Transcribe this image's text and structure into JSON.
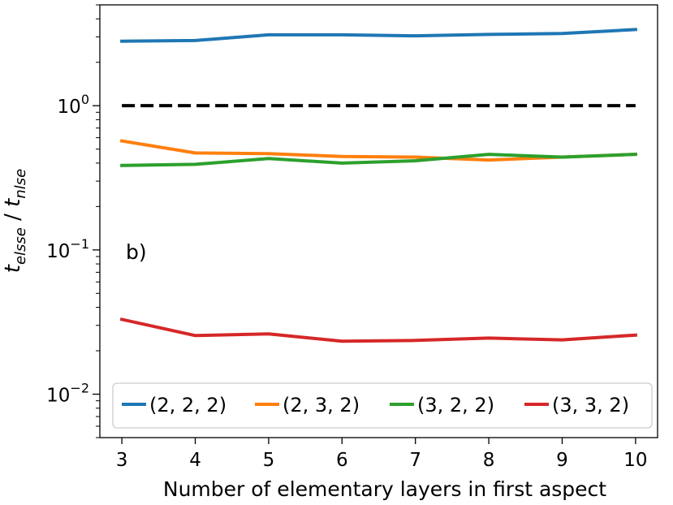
{
  "chart_data": {
    "type": "line",
    "panel_label": "b)",
    "xlabel": "Number of elementary layers in first aspect",
    "ylabel": {
      "t1": "t",
      "s1": "elsse",
      "mid": " / ",
      "t2": "t",
      "s2": "nlse"
    },
    "yscale": "log",
    "xlim": [
      2.7,
      10.3
    ],
    "ylim": [
      0.005,
      5.0
    ],
    "grid": false,
    "legend_position": "bottom",
    "x": [
      3,
      4,
      5,
      6,
      7,
      8,
      9,
      10
    ],
    "xticks": [
      "3",
      "4",
      "5",
      "6",
      "7",
      "8",
      "9",
      "10"
    ],
    "yticks": [
      {
        "value": 1,
        "base": "10",
        "exp": "0"
      },
      {
        "value": 0.1,
        "base": "10",
        "exp": "−1"
      },
      {
        "value": 0.01,
        "base": "10",
        "exp": "−2"
      }
    ],
    "reference_line": {
      "y": 1.0,
      "color": "#000000",
      "style": "dashed"
    },
    "series": [
      {
        "name": "(2, 2, 2)",
        "color": "#1f77b4",
        "values": [
          2.8,
          2.83,
          3.1,
          3.1,
          3.05,
          3.12,
          3.17,
          3.37
        ]
      },
      {
        "name": "(2, 3, 2)",
        "color": "#ff7f0e",
        "values": [
          0.57,
          0.47,
          0.465,
          0.445,
          0.44,
          0.42,
          0.44,
          0.46
        ]
      },
      {
        "name": "(3, 2, 2)",
        "color": "#2ca02c",
        "values": [
          0.385,
          0.392,
          0.43,
          0.4,
          0.415,
          0.46,
          0.44,
          0.46
        ]
      },
      {
        "name": "(3, 3, 2)",
        "color": "#d62728",
        "values": [
          0.033,
          0.0255,
          0.0262,
          0.0233,
          0.0236,
          0.0245,
          0.0238,
          0.0257
        ]
      }
    ]
  }
}
